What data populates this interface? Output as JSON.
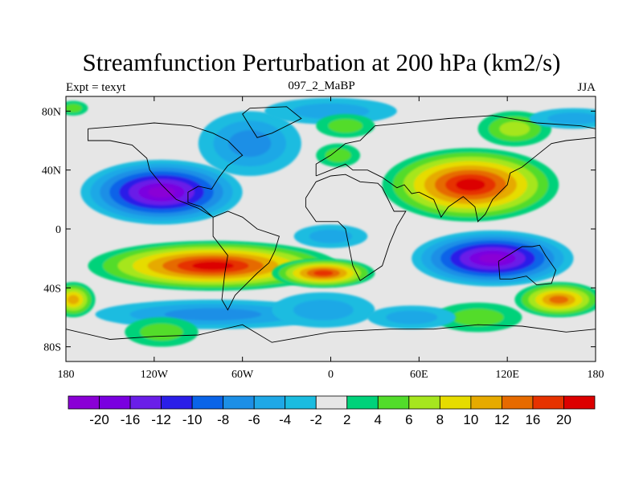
{
  "chart_data": {
    "type": "heatmap",
    "title": "Streamfunction Perturbation at 200 hPa (km2/s)",
    "left_string": "Expt = texyt",
    "center_string": "097_2_MaBP",
    "right_string": "JJA",
    "xlim": [
      -180,
      180
    ],
    "ylim": [
      -90,
      90
    ],
    "x_ticks": [
      {
        "value": -180,
        "label": "180"
      },
      {
        "value": -120,
        "label": "120W"
      },
      {
        "value": -60,
        "label": "60W"
      },
      {
        "value": 0,
        "label": "0"
      },
      {
        "value": 60,
        "label": "60E"
      },
      {
        "value": 120,
        "label": "120E"
      },
      {
        "value": 180,
        "label": "180"
      }
    ],
    "y_ticks": [
      {
        "value": 80,
        "label": "80N"
      },
      {
        "value": 40,
        "label": "40N"
      },
      {
        "value": 0,
        "label": "0"
      },
      {
        "value": -40,
        "label": "40S"
      },
      {
        "value": -80,
        "label": "80S"
      }
    ],
    "colorbar": {
      "levels": [
        "-20",
        "-16",
        "-12",
        "-10",
        "-8",
        "-6",
        "-4",
        "-2",
        "2",
        "4",
        "6",
        "8",
        "10",
        "12",
        "16",
        "20"
      ],
      "colors": [
        "#8a00d6",
        "#7a00e0",
        "#6a1ee8",
        "#2a1ee8",
        "#0a64e8",
        "#1c8fe6",
        "#1fa8e6",
        "#1bbce0",
        "#e6e6e6",
        "#00d27a",
        "#52dc2a",
        "#a6e61e",
        "#e6dc00",
        "#e6aa00",
        "#e66a00",
        "#e63200",
        "#dc0000"
      ]
    },
    "features": [
      {
        "lon": -115,
        "lat": 25,
        "rx": 55,
        "ry": 22,
        "value": -20
      },
      {
        "lon": -55,
        "lat": 58,
        "rx": 35,
        "ry": 22,
        "value": -7
      },
      {
        "lon": 0,
        "lat": 80,
        "rx": 45,
        "ry": 9,
        "value": -5
      },
      {
        "lon": 0,
        "lat": -5,
        "rx": 25,
        "ry": 8,
        "value": -4
      },
      {
        "lon": -80,
        "lat": -25,
        "rx": 85,
        "ry": 17,
        "value": 20
      },
      {
        "lon": -5,
        "lat": -30,
        "rx": 35,
        "ry": 10,
        "value": 16
      },
      {
        "lon": -80,
        "lat": -58,
        "rx": 80,
        "ry": 10,
        "value": -6
      },
      {
        "lon": -5,
        "lat": -55,
        "rx": 35,
        "ry": 12,
        "value": -4
      },
      {
        "lon": 95,
        "lat": 30,
        "rx": 60,
        "ry": 25,
        "value": 20
      },
      {
        "lon": 125,
        "lat": 68,
        "rx": 25,
        "ry": 12,
        "value": 6
      },
      {
        "lon": 5,
        "lat": 50,
        "rx": 15,
        "ry": 8,
        "value": 5
      },
      {
        "lon": 110,
        "lat": -20,
        "rx": 55,
        "ry": 19,
        "value": -20
      },
      {
        "lon": 155,
        "lat": -48,
        "rx": 30,
        "ry": 12,
        "value": 12
      },
      {
        "lon": 100,
        "lat": -60,
        "rx": 30,
        "ry": 10,
        "value": 5
      },
      {
        "lon": 55,
        "lat": -60,
        "rx": 30,
        "ry": 8,
        "value": -4
      },
      {
        "lon": -175,
        "lat": -48,
        "rx": 15,
        "ry": 12,
        "value": 10
      },
      {
        "lon": 165,
        "lat": 75,
        "rx": 30,
        "ry": 7,
        "value": -4
      },
      {
        "lon": -175,
        "lat": 82,
        "rx": 10,
        "ry": 5,
        "value": 5
      },
      {
        "lon": -115,
        "lat": -70,
        "rx": 25,
        "ry": 10,
        "value": 4
      },
      {
        "lon": 10,
        "lat": 70,
        "rx": 20,
        "ry": 8,
        "value": 4
      }
    ]
  }
}
